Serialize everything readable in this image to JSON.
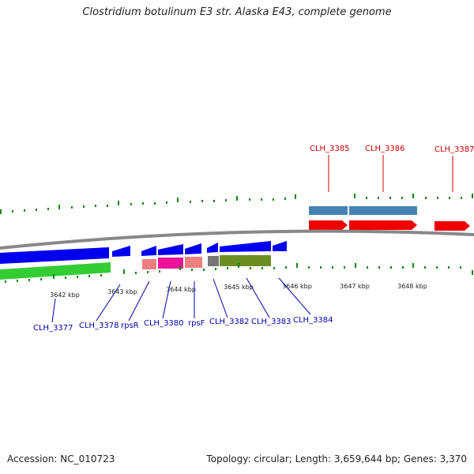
{
  "title": "Clostridium botulinum E3 str. Alaska E43, complete genome",
  "footer": {
    "accession": "Accession: NC_010723",
    "summary": "Topology: circular; Length: 3,659,644 bp; Genes: 3,370"
  },
  "ticks": [
    "3642 kbp",
    "3643 kbp",
    "3644 kbp",
    "3645 kbp",
    "3646 kbp",
    "3647 kbp",
    "3648 kbp"
  ],
  "genes_forward": [
    "CLH_3385",
    "CLH_3386",
    "CLH_3387"
  ],
  "genes_reverse": [
    "CLH_3377",
    "CLH_3378",
    "rpsR",
    "CLH_3380",
    "rpsF",
    "CLH_3382",
    "CLH_3383",
    "CLH_3384"
  ],
  "colors": {
    "forward_label": "#cc0000",
    "reverse_label": "#0000aa",
    "cds_reverse": "#0000ee",
    "cds_forward": "#ee0000",
    "gene_green": "#33cc33",
    "steel_blue": "#4682b4",
    "olive": "#6b8e23",
    "magenta": "#ee1199",
    "salmon": "#ee8080",
    "tick_green": "#118811"
  }
}
